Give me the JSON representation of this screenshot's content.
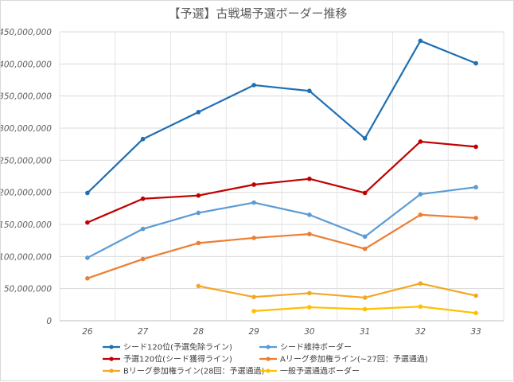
{
  "chart_data": {
    "type": "line",
    "title": "【予選】古戦場予選ボーダー推移",
    "xlabel": "",
    "ylabel": "",
    "x": [
      26,
      27,
      28,
      29,
      30,
      31,
      32,
      33
    ],
    "ylim": [
      0,
      450000000
    ],
    "ytick_labels": [
      "0",
      "50,000,000",
      "100,000,000",
      "150,000,000",
      "200,000,000",
      "250,000,000",
      "300,000,000",
      "350,000,000",
      "400,000,000",
      "450,000,000"
    ],
    "grid": true,
    "legend_position": "bottom",
    "series": [
      {
        "name": "シード120位(予選免除ライン)",
        "color": "#1f6fb2",
        "values": [
          199000000,
          283000000,
          325000000,
          367000000,
          358000000,
          284000000,
          436000000,
          401000000
        ]
      },
      {
        "name": "シード維持ボーダー",
        "color": "#5b9bd5",
        "values": [
          98000000,
          143000000,
          168000000,
          184000000,
          165000000,
          131000000,
          197000000,
          208000000
        ]
      },
      {
        "name": "予選120位(シード獲得ライン)",
        "color": "#c00000",
        "values": [
          153000000,
          190000000,
          195000000,
          212000000,
          221000000,
          199000000,
          279000000,
          271000000
        ]
      },
      {
        "name": "Aリーグ参加権ライン(~27回：予選通過)",
        "color": "#ed7d31",
        "values": [
          66000000,
          96000000,
          121000000,
          129000000,
          135000000,
          112000000,
          165000000,
          160000000
        ]
      },
      {
        "name": "Bリーグ参加権ライン(28回：予選通過)",
        "color": "#f5a623",
        "values": [
          null,
          null,
          54000000,
          37000000,
          43000000,
          36000000,
          58000000,
          39000000
        ]
      },
      {
        "name": "一般予選通過ボーダー",
        "color": "#ffc000",
        "values": [
          null,
          null,
          null,
          15000000,
          21000000,
          18000000,
          22000000,
          12000000
        ]
      }
    ]
  }
}
